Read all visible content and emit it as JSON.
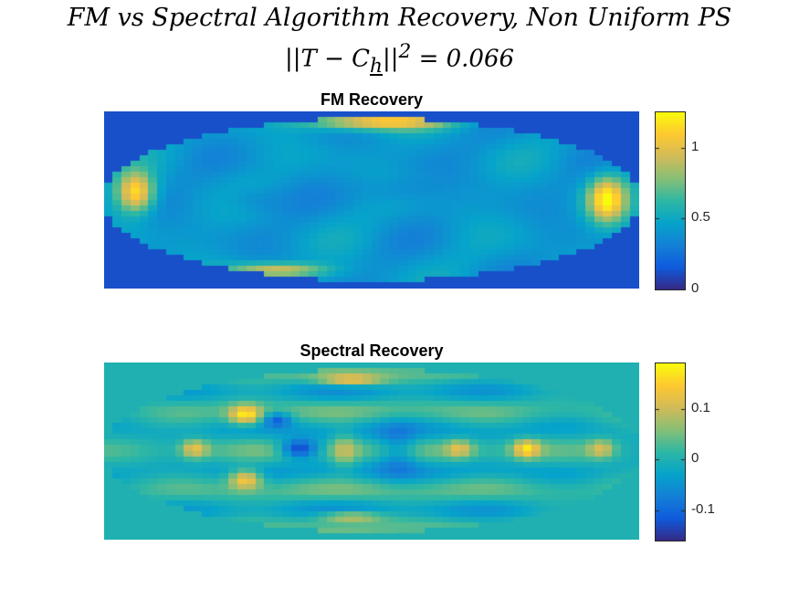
{
  "figure": {
    "title_line1": "FM vs Spectral Algorithm Recovery, Non Uniform PS",
    "title_line2": "||T − C_h||² = 0.066"
  },
  "colormap": {
    "name": "parula",
    "stops": [
      "#352a87",
      "#0f5cdd",
      "#1481d6",
      "#06a4ca",
      "#2eb7a4",
      "#87bf77",
      "#d1bb59",
      "#fec832",
      "#f9fb0e"
    ]
  },
  "chart_data": [
    {
      "type": "heatmap",
      "title": "FM Recovery",
      "background_value": 0.12,
      "clim": [
        0,
        1.25
      ],
      "colorbar_ticks": [
        {
          "value": 0,
          "label": "0"
        },
        {
          "value": 0.5,
          "label": "0.5"
        },
        {
          "value": 1,
          "label": "1"
        }
      ],
      "grid": false
    },
    {
      "type": "heatmap",
      "title": "Spectral Recovery",
      "background_value": 0.0,
      "clim": [
        -0.16,
        0.19
      ],
      "colorbar_ticks": [
        {
          "value": -0.1,
          "label": "-0.1"
        },
        {
          "value": 0,
          "label": "0"
        },
        {
          "value": 0.1,
          "label": "0.1"
        }
      ],
      "grid": false
    }
  ]
}
